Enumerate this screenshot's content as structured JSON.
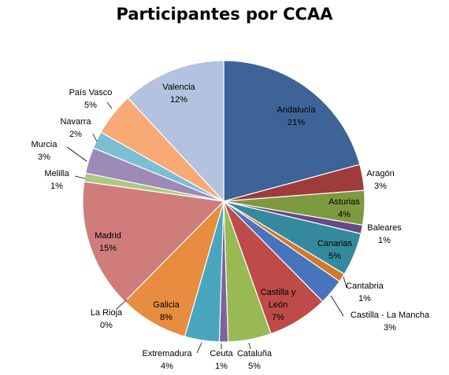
{
  "chart_data": {
    "type": "pie",
    "title": "Participantes por CCAA",
    "slices": [
      {
        "name": "Andalucía",
        "value": 21,
        "label": "21%",
        "color": "#3E6497"
      },
      {
        "name": "Aragón",
        "value": 3,
        "label": "3%",
        "color": "#9E3B3B"
      },
      {
        "name": "Asturias",
        "value": 4,
        "label": "4%",
        "color": "#7F993F"
      },
      {
        "name": "Baleares",
        "value": 1,
        "label": "1%",
        "color": "#654A84"
      },
      {
        "name": "Canarias",
        "value": 5,
        "label": "5%",
        "color": "#348A9C"
      },
      {
        "name": "Cantabria",
        "value": 1,
        "label": "1%",
        "color": "#D1782F"
      },
      {
        "name": "Castilla - La Mancha",
        "value": 3,
        "label": "3%",
        "color": "#4774BC"
      },
      {
        "name": "Castilla y León",
        "value": 7,
        "label": "7%",
        "color": "#BE4B48"
      },
      {
        "name": "Cataluña",
        "value": 5,
        "label": "5%",
        "color": "#98B954"
      },
      {
        "name": "Ceuta",
        "value": 1,
        "label": "1%",
        "color": "#7E619F"
      },
      {
        "name": "Extremadura",
        "value": 4,
        "label": "4%",
        "color": "#4AA6BD"
      },
      {
        "name": "Galicia",
        "value": 8,
        "label": "8%",
        "color": "#E88C3F"
      },
      {
        "name": "La Rioja",
        "value": 0,
        "label": "0%",
        "color": "#8FA8D2"
      },
      {
        "name": "Madrid",
        "value": 15,
        "label": "15%",
        "color": "#CF7C7B"
      },
      {
        "name": "Melilla",
        "value": 1,
        "label": "1%",
        "color": "#AEC884"
      },
      {
        "name": "Murcia",
        "value": 3,
        "label": "3%",
        "color": "#9E8AB7"
      },
      {
        "name": "Navarra",
        "value": 2,
        "label": "2%",
        "color": "#7BBFD2"
      },
      {
        "name": "País Vasco",
        "value": 5,
        "label": "5%",
        "color": "#F7AA75"
      },
      {
        "name": "Valencia",
        "value": 12,
        "label": "12%",
        "color": "#B3C2DE"
      }
    ]
  }
}
